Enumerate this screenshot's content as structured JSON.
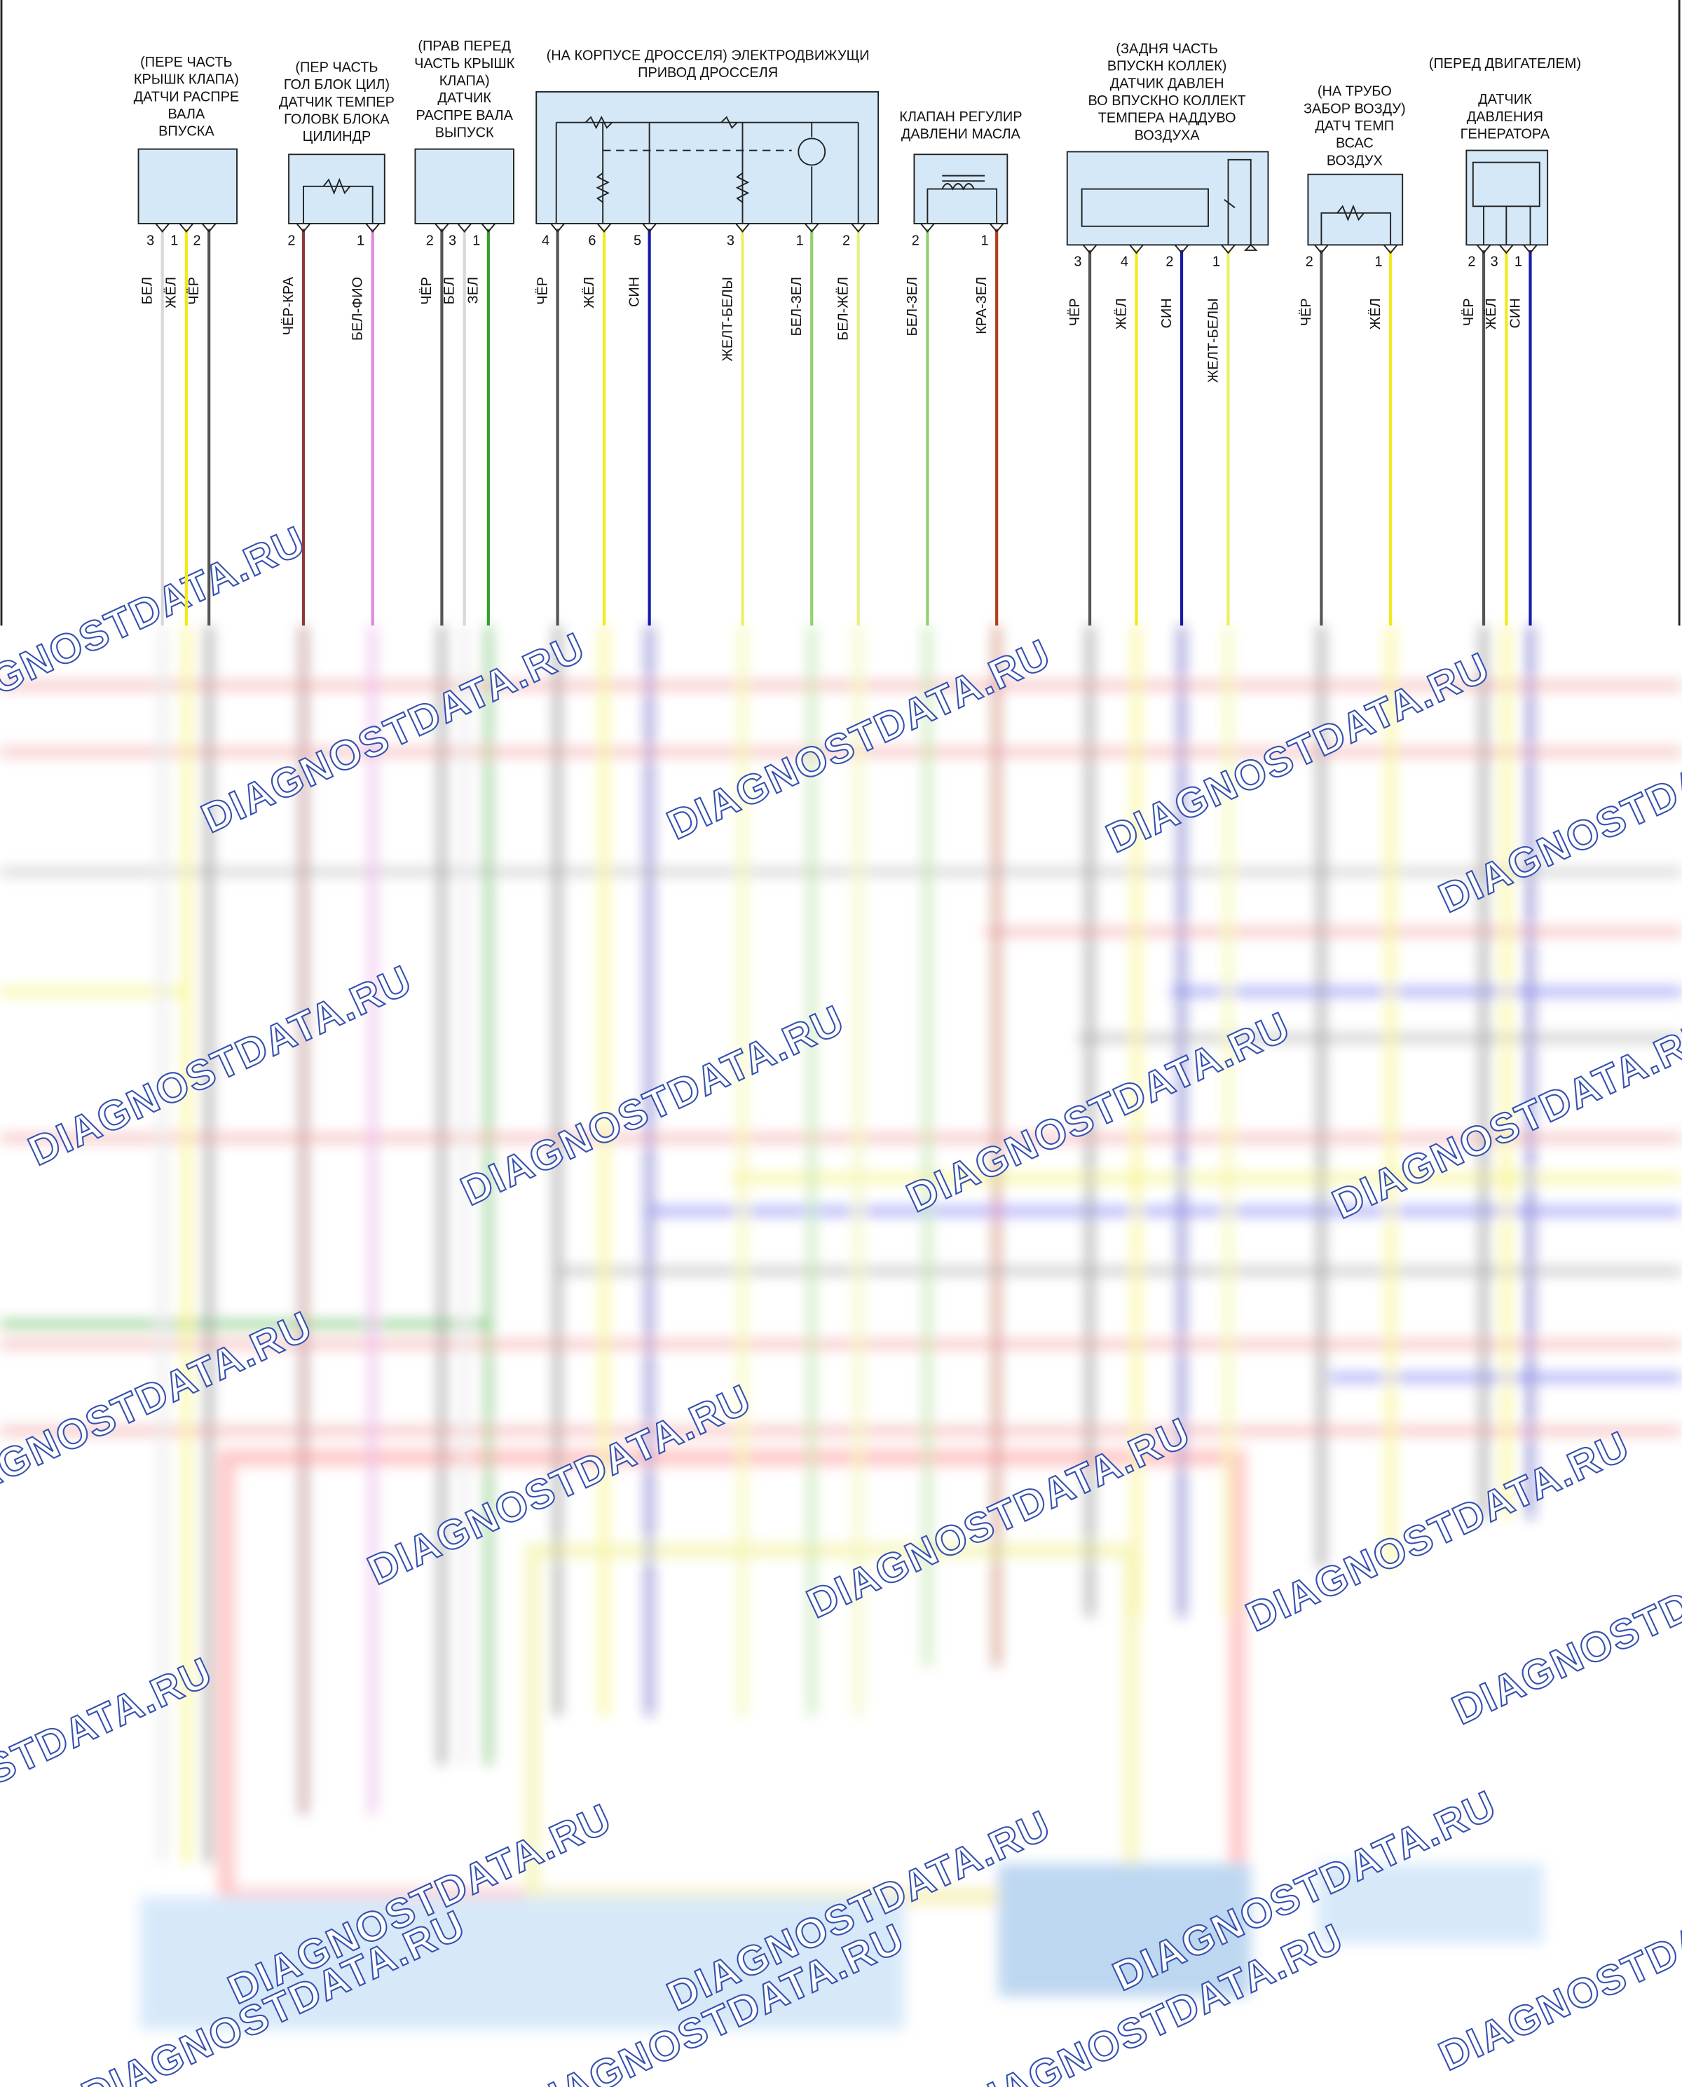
{
  "components": [
    {
      "label": [
        "(ПЕРЕ ЧАСТЬ",
        "КРЫШК КЛАПА)",
        "ДАТЧИ РАСПРЕ",
        "ВАЛА",
        "ВПУСКА"
      ],
      "pins": [
        {
          "number": "3",
          "wire": "БЕЛ",
          "color": "#d8d8d8"
        },
        {
          "number": "1",
          "wire": "ЖЁЛ",
          "color": "#f2ea1a"
        },
        {
          "number": "2",
          "wire": "ЧЁР",
          "color": "#555555"
        }
      ]
    },
    {
      "label": [
        "(ПЕР ЧАСТЬ",
        "ГОЛ БЛОК ЦИЛ)",
        "ДАТЧИК ТЕМПЕР",
        "ГОЛОВК БЛОКА",
        "ЦИЛИНДР"
      ],
      "pins": [
        {
          "number": "2",
          "wire": "ЧЁР-КРА",
          "color": "#8b3a3a"
        },
        {
          "number": "1",
          "wire": "БЕЛ-ФИО",
          "color": "#dd88dd"
        }
      ]
    },
    {
      "label": [
        "(ПРАВ ПЕРЕД",
        "ЧАСТЬ КРЫШК",
        "КЛАПА)",
        "ДАТЧИК",
        "РАСПРЕ ВАЛА",
        "ВЫПУСК"
      ],
      "pins": [
        {
          "number": "2",
          "wire": "ЧЁР",
          "color": "#555555"
        },
        {
          "number": "3",
          "wire": "БЕЛ",
          "color": "#d8d8d8"
        },
        {
          "number": "1",
          "wire": "ЗЕЛ",
          "color": "#33a02c"
        }
      ]
    },
    {
      "label": [
        "(НА КОРПУСЕ ДРОССЕЛЯ) ЭЛЕКТРОДВИЖУЩИ",
        "ПРИВОД ДРОССЕЛЯ"
      ],
      "pins": [
        {
          "number": "4",
          "wire": "ЧЁР",
          "color": "#555555"
        },
        {
          "number": "6",
          "wire": "ЖЁЛ",
          "color": "#f2ea1a"
        },
        {
          "number": "5",
          "wire": "СИН",
          "color": "#1a1aa8"
        },
        {
          "number": "3",
          "wire": "ЖЕЛТ-БЕЛЫ",
          "color": "#eeee66"
        },
        {
          "number": "1",
          "wire": "БЕЛ-ЗЕЛ",
          "color": "#90d070"
        },
        {
          "number": "2",
          "wire": "БЕЛ-ЖЁЛ",
          "color": "#e8ee80"
        }
      ]
    },
    {
      "label": [
        "КЛАПАН РЕГУЛИР",
        "ДАВЛЕНИ МАСЛА"
      ],
      "pins": [
        {
          "number": "2",
          "wire": "БЕЛ-ЗЕЛ",
          "color": "#90d070"
        },
        {
          "number": "1",
          "wire": "КРА-ЗЕЛ",
          "color": "#b0401a"
        }
      ]
    },
    {
      "label": [
        "(ЗАДНЯ ЧАСТЬ",
        "ВПУСКН КОЛЛЕК)",
        "ДАТЧИК ДАВЛЕН",
        "ВО ВПУСКНО КОЛЛЕКТ",
        "ТЕМПЕРА НАДДУВО",
        "ВОЗДУХА"
      ],
      "pins": [
        {
          "number": "3",
          "wire": "ЧЁР",
          "color": "#555555"
        },
        {
          "number": "4",
          "wire": "ЖЁЛ",
          "color": "#f2ea1a"
        },
        {
          "number": "2",
          "wire": "СИН",
          "color": "#1a1aa8"
        },
        {
          "number": "1",
          "wire": "ЖЕЛТ-БЕЛЫ",
          "color": "#eeee66"
        }
      ]
    },
    {
      "label": [
        "(НА ТРУБО",
        "ЗАБОР ВОЗДУ)",
        "ДАТЧ ТЕМП",
        "ВСАС",
        "ВОЗДУХ"
      ],
      "pins": [
        {
          "number": "2",
          "wire": "ЧЁР",
          "color": "#555555"
        },
        {
          "number": "1",
          "wire": "ЖЁЛ",
          "color": "#f2ea1a"
        }
      ]
    },
    {
      "label": [
        "(ПЕРЕД ДВИГАТЕЛЕМ)",
        "ДАТЧИК",
        "ДАВЛЕНИЯ",
        "ГЕНЕРАТОРА"
      ],
      "pins": [
        {
          "number": "2",
          "wire": "ЧЁР",
          "color": "#555555"
        },
        {
          "number": "3",
          "wire": "ЖЁЛ",
          "color": "#f2ea1a"
        },
        {
          "number": "1",
          "wire": "СИН",
          "color": "#1a1aa8"
        }
      ]
    }
  ],
  "watermark": "DIAGNOSTDATA.RU"
}
